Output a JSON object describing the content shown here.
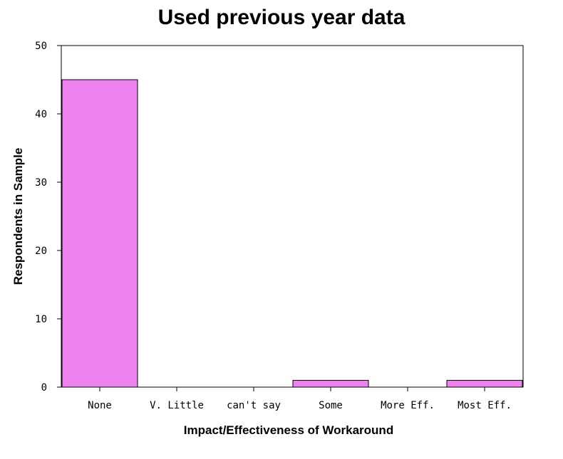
{
  "chart_data": {
    "type": "bar",
    "title": "Used previous year data",
    "xlabel": "Impact/Effectiveness of Workaround",
    "ylabel": "Respondents in Sample",
    "categories": [
      "None",
      "V. Little",
      "can't say",
      "Some",
      "More Eff.",
      "Most Eff."
    ],
    "values": [
      45,
      0,
      0,
      1,
      0,
      1
    ],
    "ylim": [
      0,
      50
    ],
    "yticks": [
      0,
      10,
      20,
      30,
      40,
      50
    ],
    "grid": false,
    "bar_color": "#ee82ee"
  }
}
